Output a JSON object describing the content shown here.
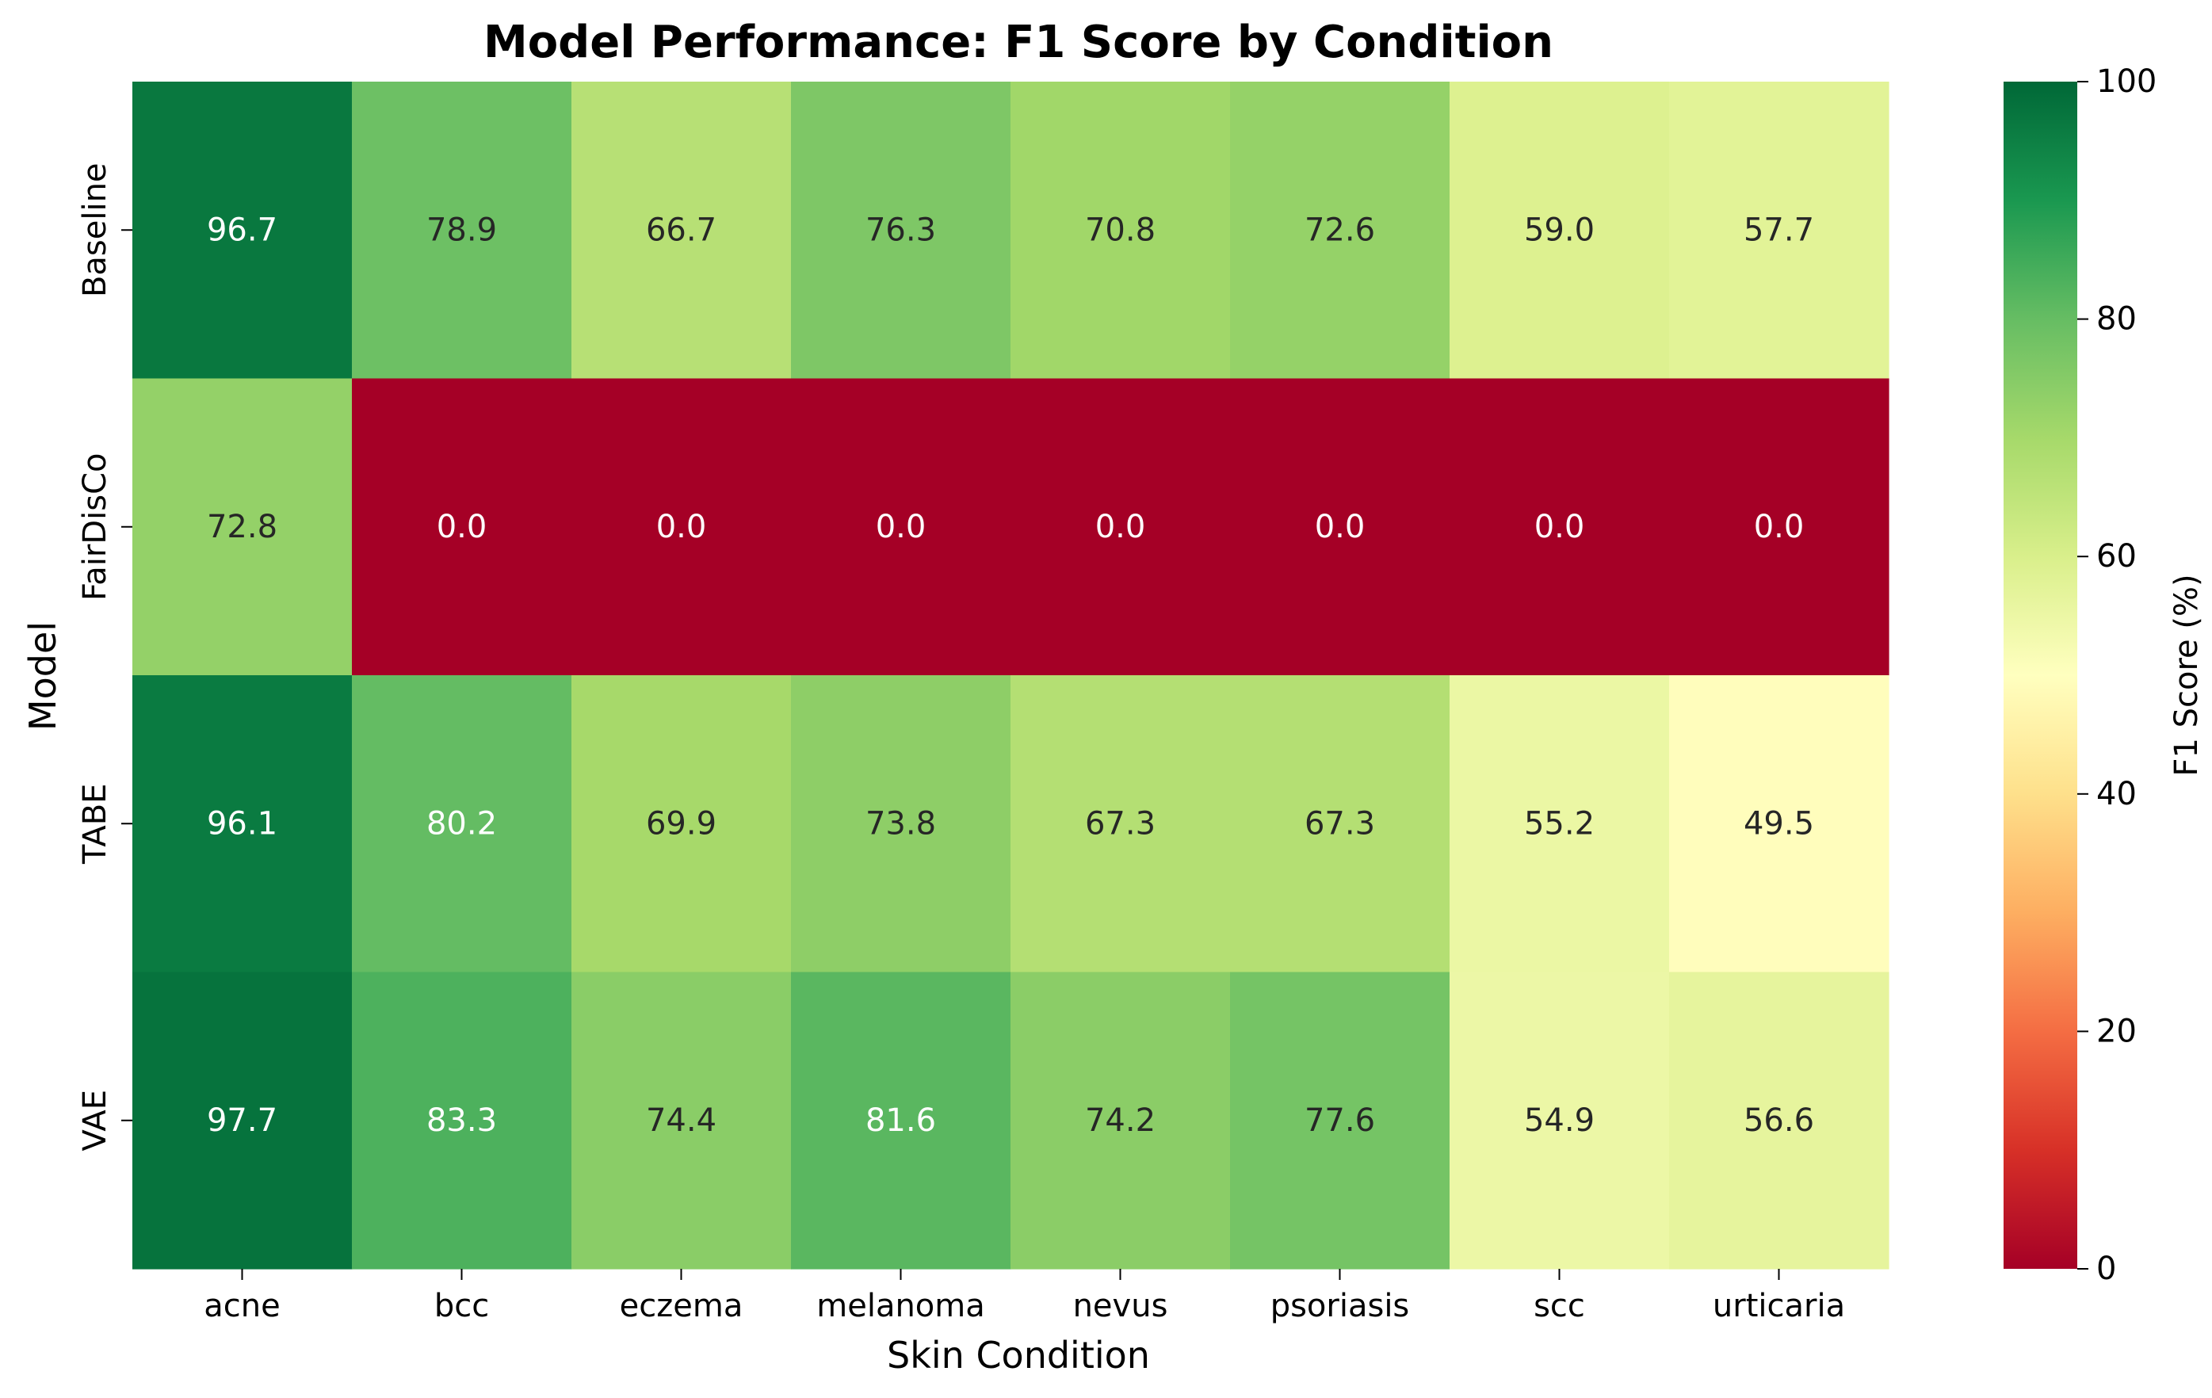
{
  "chart_data": {
    "type": "heatmap",
    "title": "Model Performance: F1 Score by Condition",
    "xlabel": "Skin Condition",
    "ylabel": "Model",
    "x_categories": [
      "acne",
      "bcc",
      "eczema",
      "melanoma",
      "nevus",
      "psoriasis",
      "scc",
      "urticaria"
    ],
    "y_categories": [
      "Baseline",
      "FairDisCo",
      "TABE",
      "VAE"
    ],
    "values": [
      [
        96.7,
        78.9,
        66.7,
        76.3,
        70.8,
        72.6,
        59.0,
        57.7
      ],
      [
        72.8,
        0.0,
        0.0,
        0.0,
        0.0,
        0.0,
        0.0,
        0.0
      ],
      [
        96.1,
        80.2,
        69.9,
        73.8,
        67.3,
        67.3,
        55.2,
        49.5
      ],
      [
        97.7,
        83.3,
        74.4,
        81.6,
        74.2,
        77.6,
        54.9,
        56.6
      ]
    ],
    "value_format": "0.0",
    "colormap": "RdYlGn",
    "colorbar": {
      "label": "F1 Score (%)",
      "range": [
        0,
        100
      ],
      "ticks": [
        0,
        20,
        40,
        60,
        80,
        100
      ]
    }
  }
}
